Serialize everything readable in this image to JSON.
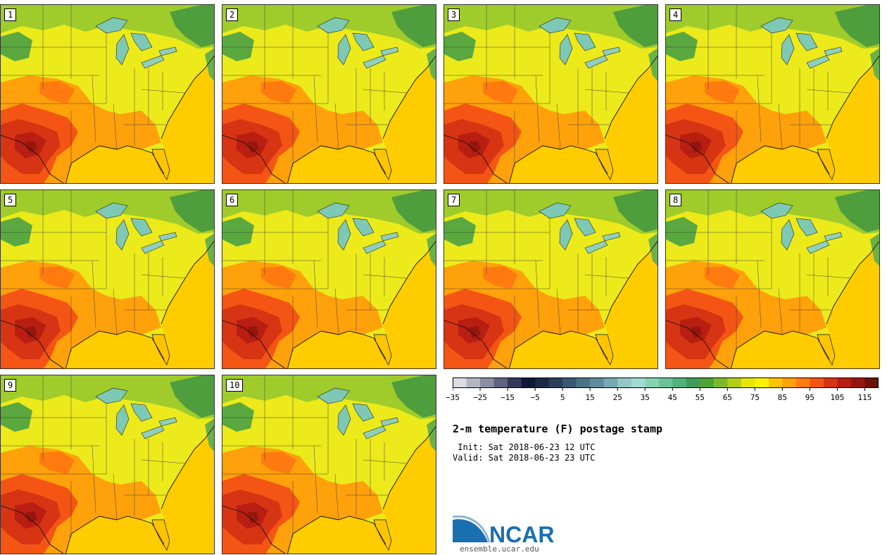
{
  "title": "2-m temperature (F) postage stamp",
  "init": " Init: Sat 2018-06-23 12 UTC",
  "valid": "Valid: Sat 2018-06-23 23 UTC",
  "members": [
    "1",
    "2",
    "3",
    "4",
    "5",
    "6",
    "7",
    "8",
    "9",
    "10"
  ],
  "colorbar": {
    "ticks": [
      "−35",
      "−25",
      "−15",
      "−5",
      "5",
      "15",
      "25",
      "35",
      "45",
      "55",
      "65",
      "75",
      "85",
      "95",
      "105",
      "115"
    ],
    "colors": [
      "#dcdde2",
      "#b3b5c3",
      "#8b8ea3",
      "#5f637d",
      "#33385a",
      "#0f1838",
      "#1c2a48",
      "#2b3f5c",
      "#3a5873",
      "#4c7288",
      "#5f8c9c",
      "#77a9b2",
      "#92c6c7",
      "#9fdad3",
      "#86d2b2",
      "#6ac396",
      "#52b17c",
      "#3f9c59",
      "#50a338",
      "#7eb92b",
      "#b2cf17",
      "#e6e705",
      "#fff200",
      "#ffc400",
      "#ffa10b",
      "#ff7b10",
      "#f45514",
      "#d73414",
      "#b91e12",
      "#96160d",
      "#6b1208"
    ]
  },
  "logo": {
    "text": "NCAR",
    "url": "ensemble.ucar.edu",
    "brand_color": "#1a6fb0"
  }
}
